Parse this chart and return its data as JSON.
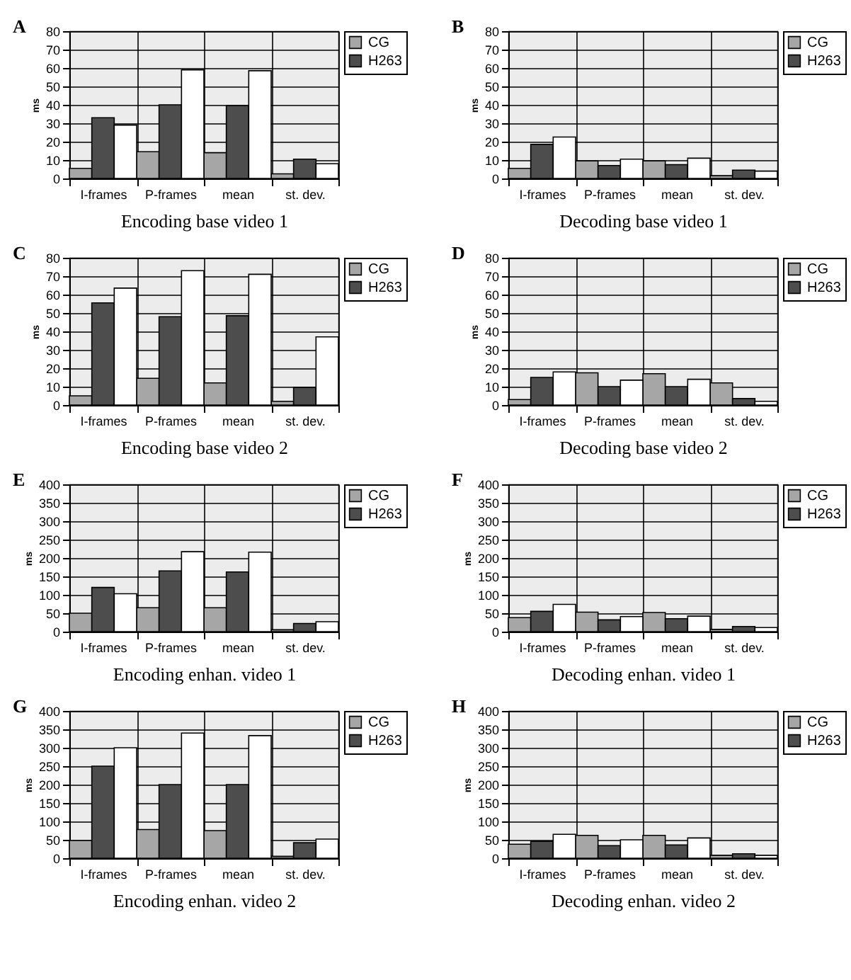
{
  "chart_data": [
    {
      "type": "bar",
      "title": "A",
      "xlabel": "Encoding base video 1",
      "ylabel": "ms",
      "categories": [
        "I-frames",
        "P-frames",
        "mean",
        "st. dev."
      ],
      "ylim": [
        0,
        80
      ],
      "yticks": [
        0,
        10,
        20,
        30,
        40,
        50,
        60,
        70,
        80
      ],
      "grid": true,
      "legend": "right",
      "series": [
        {
          "name": "CG",
          "color": "#a6a6a6",
          "values": [
            5.5,
            14.5,
            14,
            2.5
          ]
        },
        {
          "name": "H263",
          "color": "#4d4d4d",
          "values": [
            33,
            40,
            39.5,
            10.5
          ]
        },
        {
          "color": "#ffffff",
          "values": [
            29,
            59,
            58.5,
            8
          ]
        }
      ]
    },
    {
      "type": "bar",
      "title": "B",
      "xlabel": "Decoding base video 1",
      "ylabel": "ms",
      "categories": [
        "I-frames",
        "P-frames",
        "mean",
        "st. dev."
      ],
      "ylim": [
        0,
        80
      ],
      "yticks": [
        0,
        10,
        20,
        30,
        40,
        50,
        60,
        70,
        80
      ],
      "grid": true,
      "legend": "right",
      "series": [
        {
          "name": "CG",
          "color": "#a6a6a6",
          "values": [
            5.5,
            9.5,
            9.5,
            1.5
          ]
        },
        {
          "name": "H263",
          "color": "#4d4d4d",
          "values": [
            18.5,
            7,
            7.5,
            4.5
          ]
        },
        {
          "color": "#ffffff",
          "values": [
            22.5,
            10.5,
            11,
            4
          ]
        }
      ]
    },
    {
      "type": "bar",
      "title": "C",
      "xlabel": "Encoding base video 2",
      "ylabel": "ms",
      "categories": [
        "I-frames",
        "P-frames",
        "mean",
        "st. dev."
      ],
      "ylim": [
        0,
        80
      ],
      "yticks": [
        0,
        10,
        20,
        30,
        40,
        50,
        60,
        70,
        80
      ],
      "grid": true,
      "legend": "right",
      "series": [
        {
          "name": "CG",
          "color": "#a6a6a6",
          "values": [
            5,
            14.5,
            12,
            2
          ]
        },
        {
          "name": "H263",
          "color": "#4d4d4d",
          "values": [
            55.5,
            48,
            48.5,
            9.5
          ]
        },
        {
          "color": "#ffffff",
          "values": [
            63.5,
            73,
            71,
            37
          ]
        }
      ]
    },
    {
      "type": "bar",
      "title": "D",
      "xlabel": "Decoding base video 2",
      "ylabel": "ms",
      "categories": [
        "I-frames",
        "P-frames",
        "mean",
        "st. dev."
      ],
      "ylim": [
        0,
        80
      ],
      "yticks": [
        0,
        10,
        20,
        30,
        40,
        50,
        60,
        70,
        80
      ],
      "grid": true,
      "legend": "right",
      "series": [
        {
          "name": "CG",
          "color": "#a6a6a6",
          "values": [
            3,
            17.5,
            17,
            12
          ]
        },
        {
          "name": "H263",
          "color": "#4d4d4d",
          "values": [
            15,
            10,
            10,
            3.5
          ]
        },
        {
          "color": "#ffffff",
          "values": [
            18,
            13.5,
            14,
            2
          ]
        }
      ]
    },
    {
      "type": "bar",
      "title": "E",
      "xlabel": "Encoding enhan. video 1",
      "ylabel": "ms",
      "categories": [
        "I-frames",
        "P-frames",
        "mean",
        "st. dev."
      ],
      "ylim": [
        0,
        400
      ],
      "yticks": [
        0,
        50,
        100,
        150,
        200,
        250,
        300,
        350,
        400
      ],
      "grid": true,
      "legend": "right",
      "series": [
        {
          "name": "CG",
          "color": "#a6a6a6",
          "values": [
            50,
            65,
            65,
            5
          ]
        },
        {
          "name": "H263",
          "color": "#4d4d4d",
          "values": [
            120,
            165,
            162,
            22
          ]
        },
        {
          "color": "#ffffff",
          "values": [
            103,
            217,
            216,
            27
          ]
        }
      ]
    },
    {
      "type": "bar",
      "title": "F",
      "xlabel": "Decoding enhan. video 1",
      "ylabel": "ms",
      "categories": [
        "I-frames",
        "P-frames",
        "mean",
        "st. dev."
      ],
      "ylim": [
        0,
        400
      ],
      "yticks": [
        0,
        50,
        100,
        150,
        200,
        250,
        300,
        350,
        400
      ],
      "grid": true,
      "legend": "right",
      "series": [
        {
          "name": "CG",
          "color": "#a6a6a6",
          "values": [
            38,
            53,
            52,
            6
          ]
        },
        {
          "name": "H263",
          "color": "#4d4d4d",
          "values": [
            55,
            32,
            35,
            14
          ]
        },
        {
          "color": "#ffffff",
          "values": [
            74,
            41,
            42,
            11
          ]
        }
      ]
    },
    {
      "type": "bar",
      "title": "G",
      "xlabel": "Encoding enhan. video 2",
      "ylabel": "ms",
      "categories": [
        "I-frames",
        "P-frames",
        "mean",
        "st. dev."
      ],
      "ylim": [
        0,
        400
      ],
      "yticks": [
        0,
        50,
        100,
        150,
        200,
        250,
        300,
        350,
        400
      ],
      "grid": true,
      "legend": "right",
      "series": [
        {
          "name": "CG",
          "color": "#a6a6a6",
          "values": [
            48,
            78,
            75,
            5
          ]
        },
        {
          "name": "H263",
          "color": "#4d4d4d",
          "values": [
            250,
            200,
            200,
            42
          ]
        },
        {
          "color": "#ffffff",
          "values": [
            300,
            340,
            333,
            52
          ]
        }
      ]
    },
    {
      "type": "bar",
      "title": "H",
      "xlabel": "Decoding enhan. video 2",
      "ylabel": "ms",
      "categories": [
        "I-frames",
        "P-frames",
        "mean",
        "st. dev."
      ],
      "ylim": [
        0,
        400
      ],
      "yticks": [
        0,
        50,
        100,
        150,
        200,
        250,
        300,
        350,
        400
      ],
      "grid": true,
      "legend": "right",
      "series": [
        {
          "name": "CG",
          "color": "#a6a6a6",
          "values": [
            38,
            62,
            62,
            8
          ]
        },
        {
          "name": "H263",
          "color": "#4d4d4d",
          "values": [
            46,
            34,
            36,
            12
          ]
        },
        {
          "color": "#ffffff",
          "values": [
            65,
            50,
            55,
            8
          ]
        }
      ]
    }
  ]
}
